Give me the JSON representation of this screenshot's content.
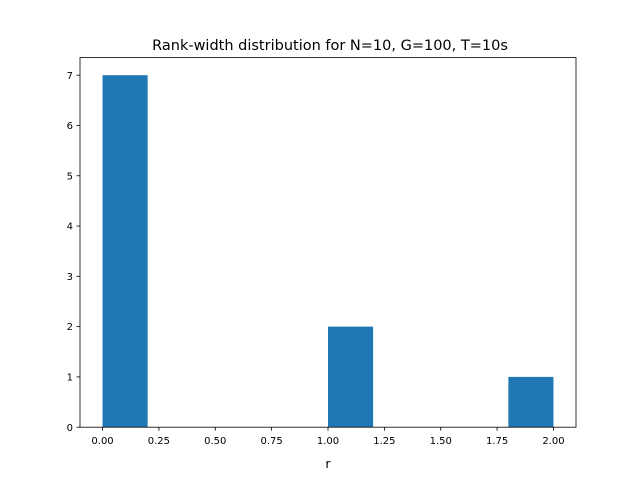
{
  "chart_data": {
    "type": "bar",
    "title": "Rank-width distribution for N=10, G=100, T=10s",
    "xlabel": "r",
    "ylabel": "",
    "bins": [
      {
        "x0": 0.0,
        "x1": 0.2,
        "count": 7
      },
      {
        "x0": 0.2,
        "x1": 0.4,
        "count": 0
      },
      {
        "x0": 0.4,
        "x1": 0.6,
        "count": 0
      },
      {
        "x0": 0.6,
        "x1": 0.8,
        "count": 0
      },
      {
        "x0": 0.8,
        "x1": 1.0,
        "count": 0
      },
      {
        "x0": 1.0,
        "x1": 1.2,
        "count": 2
      },
      {
        "x0": 1.2,
        "x1": 1.4,
        "count": 0
      },
      {
        "x0": 1.4,
        "x1": 1.6,
        "count": 0
      },
      {
        "x0": 1.6,
        "x1": 1.8,
        "count": 0
      },
      {
        "x0": 1.8,
        "x1": 2.0,
        "count": 1
      }
    ],
    "xlim": [
      -0.1,
      2.1
    ],
    "ylim": [
      0,
      7.35
    ],
    "xticks": [
      0.0,
      0.25,
      0.5,
      0.75,
      1.0,
      1.25,
      1.5,
      1.75,
      2.0
    ],
    "xtick_labels": [
      "0.00",
      "0.25",
      "0.50",
      "0.75",
      "1.00",
      "1.25",
      "1.50",
      "1.75",
      "2.00"
    ],
    "yticks": [
      0,
      1,
      2,
      3,
      4,
      5,
      6,
      7
    ],
    "ytick_labels": [
      "0",
      "1",
      "2",
      "3",
      "4",
      "5",
      "6",
      "7"
    ],
    "bar_color": "#1f77b4",
    "grid": false,
    "legend": false
  }
}
